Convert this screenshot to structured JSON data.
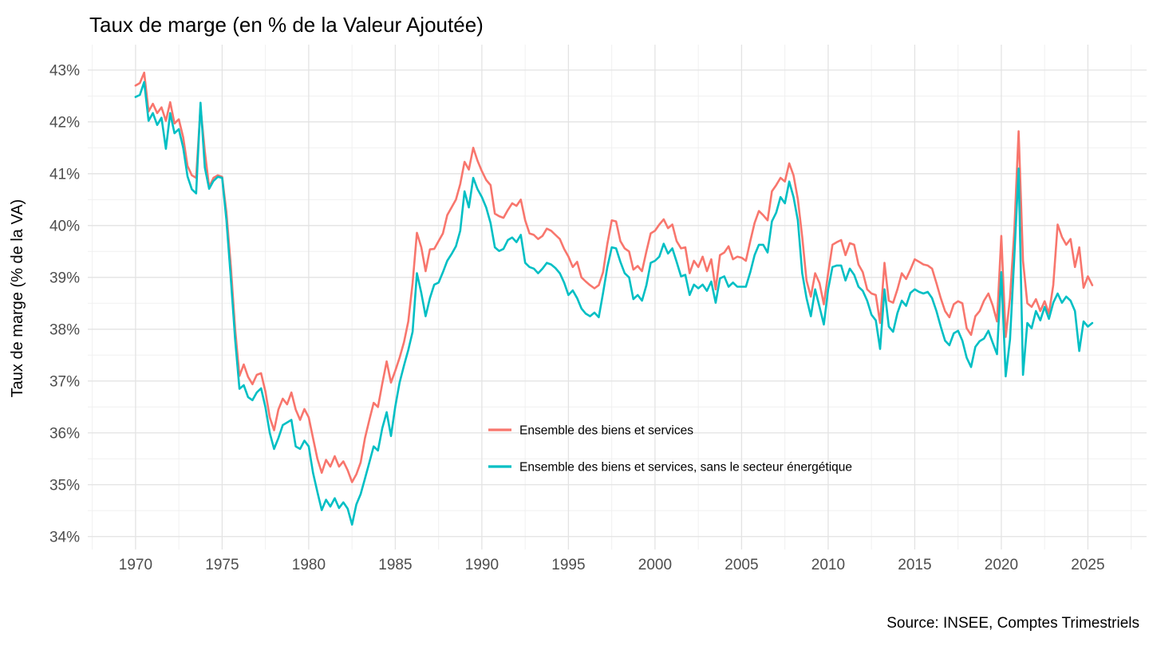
{
  "title": "Taux de marge (en % de la Valeur Ajoutée)",
  "source": "Source: INSEE, Comptes Trimestriels",
  "chart_data": {
    "type": "line",
    "title": "Taux de marge (en % de la Valeur Ajoutée)",
    "xlabel": "",
    "ylabel": "Taux de marge (% de la VA)",
    "grid": true,
    "legend_position": "inside-center-bottom",
    "x_unit": "year-quarterly",
    "x_start": 1970.0,
    "x_step": 0.25,
    "x_range": [
      1967.24,
      2028.39
    ],
    "y_range": [
      33.75,
      43.49
    ],
    "x_ticks": [
      1970,
      1975,
      1980,
      1985,
      1990,
      1995,
      2000,
      2005,
      2010,
      2015,
      2020,
      2025
    ],
    "x_tick_labels": [
      "1970",
      "1975",
      "1980",
      "1985",
      "1990",
      "1995",
      "2000",
      "2005",
      "2010",
      "2015",
      "2020",
      "2025"
    ],
    "x_minor": [
      1967.5,
      1972.5,
      1977.5,
      1982.5,
      1987.5,
      1992.5,
      1997.5,
      2002.5,
      2007.5,
      2012.5,
      2017.5,
      2022.5,
      2027.5
    ],
    "y_ticks": [
      34,
      35,
      36,
      37,
      38,
      39,
      40,
      41,
      42,
      43
    ],
    "y_tick_labels": [
      "34%",
      "35%",
      "36%",
      "37%",
      "38%",
      "39%",
      "40%",
      "41%",
      "42%",
      "43%"
    ],
    "y_minor": [
      34.5,
      35.5,
      36.5,
      37.5,
      38.5,
      39.5,
      40.5,
      41.5,
      42.5,
      43.5
    ],
    "series": [
      {
        "name": "Ensemble des biens et services",
        "color": "#F8766D",
        "values": [
          42.7,
          42.75,
          42.95,
          42.2,
          42.35,
          42.17,
          42.28,
          42.02,
          42.38,
          41.97,
          42.05,
          41.7,
          41.15,
          40.97,
          40.92,
          42.28,
          41.43,
          40.74,
          40.92,
          40.97,
          40.94,
          40.25,
          39.23,
          38.0,
          37.1,
          37.32,
          37.08,
          36.94,
          37.12,
          37.15,
          36.8,
          36.3,
          36.05,
          36.45,
          36.66,
          36.55,
          36.78,
          36.45,
          36.25,
          36.46,
          36.3,
          35.9,
          35.5,
          35.23,
          35.48,
          35.35,
          35.55,
          35.35,
          35.45,
          35.28,
          35.05,
          35.2,
          35.43,
          35.9,
          36.25,
          36.58,
          36.5,
          36.95,
          37.38,
          36.97,
          37.2,
          37.45,
          37.75,
          38.15,
          38.89,
          39.86,
          39.58,
          39.12,
          39.54,
          39.55,
          39.7,
          39.85,
          40.2,
          40.35,
          40.5,
          40.8,
          41.23,
          41.08,
          41.5,
          41.25,
          41.05,
          40.88,
          40.78,
          40.23,
          40.18,
          40.15,
          40.3,
          40.43,
          40.38,
          40.5,
          40.1,
          39.85,
          39.82,
          39.74,
          39.8,
          39.94,
          39.9,
          39.82,
          39.74,
          39.55,
          39.4,
          39.2,
          39.3,
          39.0,
          38.92,
          38.85,
          38.79,
          38.85,
          39.1,
          39.65,
          40.1,
          40.08,
          39.7,
          39.56,
          39.5,
          39.15,
          39.22,
          39.12,
          39.5,
          39.85,
          39.9,
          40.02,
          40.12,
          39.95,
          40.02,
          39.7,
          39.56,
          39.58,
          39.08,
          39.32,
          39.2,
          39.4,
          39.12,
          39.35,
          38.77,
          39.43,
          39.48,
          39.6,
          39.35,
          39.4,
          39.38,
          39.32,
          39.7,
          40.05,
          40.28,
          40.2,
          40.1,
          40.66,
          40.78,
          40.92,
          40.85,
          41.2,
          40.97,
          40.51,
          39.78,
          38.94,
          38.63,
          39.08,
          38.89,
          38.48,
          39.08,
          39.63,
          39.68,
          39.72,
          39.43,
          39.66,
          39.63,
          39.25,
          39.1,
          38.77,
          38.69,
          38.66,
          38.12,
          39.28,
          38.55,
          38.51,
          38.77,
          39.08,
          38.97,
          39.15,
          39.35,
          39.3,
          39.25,
          39.23,
          39.17,
          38.89,
          38.6,
          38.35,
          38.23,
          38.48,
          38.54,
          38.5,
          38.02,
          37.89,
          38.25,
          38.35,
          38.55,
          38.69,
          38.46,
          38.15,
          39.8,
          37.85,
          38.6,
          39.9,
          41.82,
          39.32,
          38.5,
          38.43,
          38.58,
          38.35,
          38.54,
          38.3,
          38.85,
          40.02,
          39.78,
          39.63,
          39.74,
          39.2,
          39.58,
          38.8,
          39.02,
          38.85
        ]
      },
      {
        "name": "Ensemble des biens et services, sans le secteur énergétique",
        "color": "#00BFC4",
        "values": [
          42.48,
          42.52,
          42.77,
          42.02,
          42.17,
          41.94,
          42.08,
          41.48,
          42.17,
          41.78,
          41.86,
          41.5,
          40.95,
          40.7,
          40.62,
          42.37,
          41.12,
          40.71,
          40.86,
          40.94,
          40.92,
          40.1,
          39.0,
          37.8,
          36.85,
          36.92,
          36.69,
          36.63,
          36.78,
          36.86,
          36.5,
          36.0,
          35.69,
          35.9,
          36.15,
          36.2,
          36.25,
          35.74,
          35.69,
          35.85,
          35.74,
          35.23,
          34.86,
          34.51,
          34.71,
          34.58,
          34.74,
          34.55,
          34.66,
          34.54,
          34.23,
          34.62,
          34.82,
          35.12,
          35.43,
          35.74,
          35.66,
          36.09,
          36.4,
          35.94,
          36.51,
          36.97,
          37.3,
          37.6,
          37.95,
          39.08,
          38.7,
          38.25,
          38.6,
          38.86,
          38.9,
          39.1,
          39.32,
          39.45,
          39.6,
          39.9,
          40.66,
          40.35,
          40.92,
          40.7,
          40.55,
          40.35,
          40.05,
          39.58,
          39.51,
          39.55,
          39.72,
          39.77,
          39.68,
          39.82,
          39.28,
          39.2,
          39.17,
          39.08,
          39.17,
          39.28,
          39.25,
          39.18,
          39.08,
          38.9,
          38.66,
          38.75,
          38.6,
          38.4,
          38.3,
          38.25,
          38.32,
          38.23,
          38.7,
          39.2,
          39.58,
          39.56,
          39.3,
          39.08,
          39.0,
          38.58,
          38.66,
          38.55,
          38.85,
          39.28,
          39.32,
          39.4,
          39.65,
          39.46,
          39.56,
          39.3,
          39.02,
          39.05,
          38.66,
          38.86,
          38.79,
          38.86,
          38.74,
          38.92,
          38.51,
          38.98,
          39.02,
          38.82,
          38.9,
          38.82,
          38.82,
          38.82,
          39.1,
          39.43,
          39.63,
          39.63,
          39.48,
          40.08,
          40.25,
          40.55,
          40.43,
          40.85,
          40.55,
          40.1,
          39.08,
          38.6,
          38.25,
          38.77,
          38.43,
          38.09,
          38.77,
          39.2,
          39.23,
          39.23,
          38.94,
          39.17,
          39.05,
          38.82,
          38.74,
          38.55,
          38.28,
          38.17,
          37.62,
          38.77,
          38.05,
          37.95,
          38.31,
          38.55,
          38.45,
          38.7,
          38.77,
          38.72,
          38.69,
          38.72,
          38.6,
          38.35,
          38.05,
          37.78,
          37.69,
          37.92,
          37.97,
          37.78,
          37.45,
          37.27,
          37.66,
          37.77,
          37.82,
          37.97,
          37.74,
          37.52,
          39.1,
          37.09,
          37.8,
          39.4,
          41.1,
          37.12,
          38.12,
          38.02,
          38.35,
          38.17,
          38.43,
          38.2,
          38.51,
          38.69,
          38.51,
          38.63,
          38.55,
          38.35,
          37.58,
          38.15,
          38.05,
          38.12
        ]
      }
    ]
  }
}
